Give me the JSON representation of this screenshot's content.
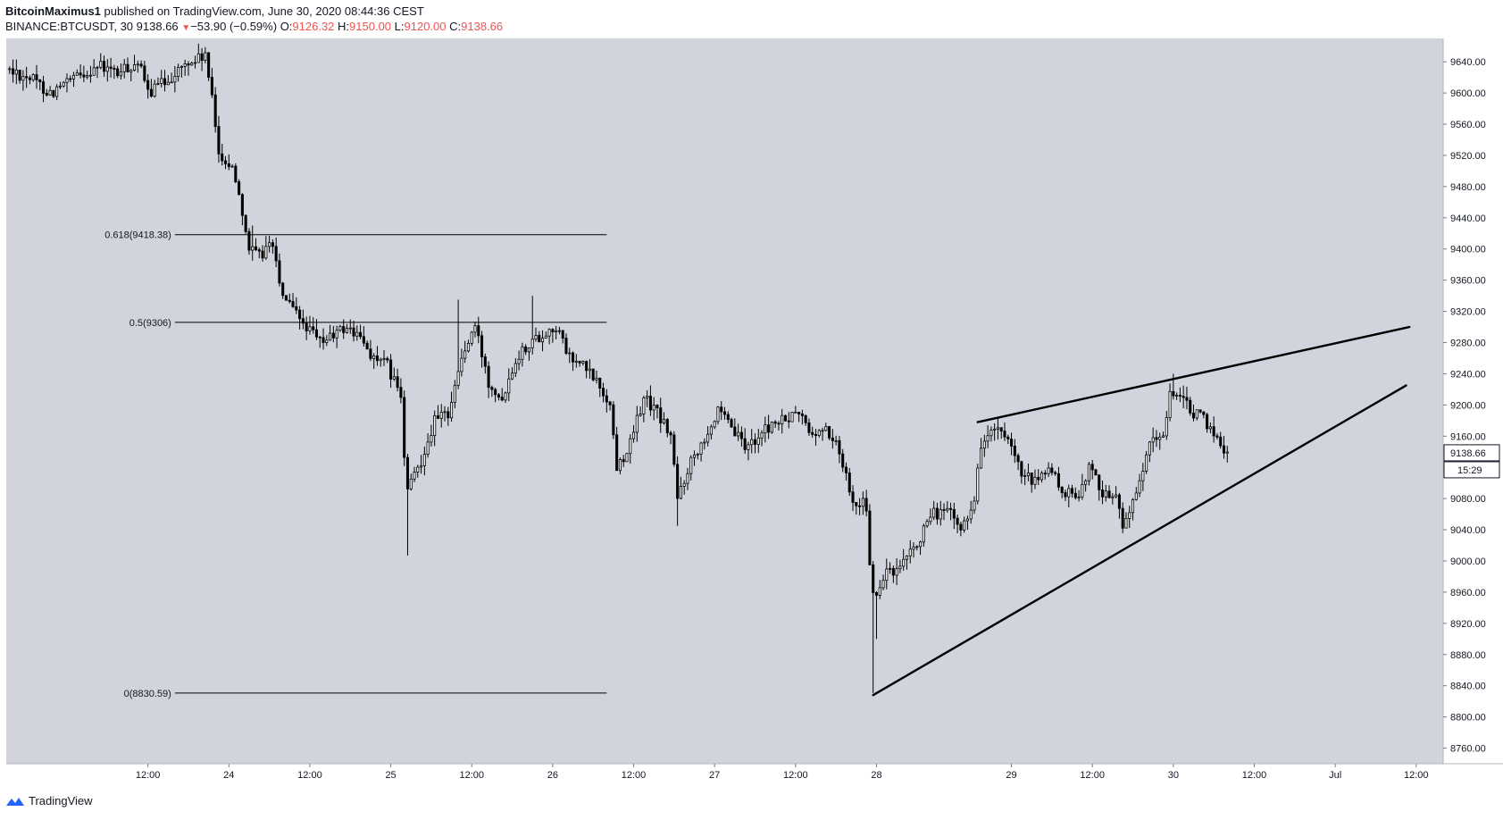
{
  "header": {
    "author": "BitcoinMaximus1",
    "published_text": "published on TradingView.com, June 30, 2020 08:44:36 CEST"
  },
  "symbol_bar": {
    "symbol": "BINANCE:BTCUSDT, 30",
    "last": "9138.66",
    "direction_icon": "down-triangle-icon",
    "change": "−53.90 (−0.59%)",
    "open_label": "O:",
    "open": "9126.32",
    "high_label": "H:",
    "high": "9150.00",
    "low_label": "L:",
    "low": "9120.00",
    "close_label": "C:",
    "close": "9138.66"
  },
  "footer": {
    "brand": "TradingView",
    "logo_icon": "tradingview-logo-icon"
  },
  "colors": {
    "plot_background": "#d1d4dc",
    "candle": "#000000",
    "text": "#131722",
    "down_value": "#ef5350"
  },
  "chart_data": {
    "type": "candlestick",
    "timeframe": "30",
    "y_axis": {
      "range": [
        8740,
        9670
      ],
      "ticks": [
        8760,
        8800,
        8840,
        8880,
        8920,
        8960,
        9000,
        9040,
        9080,
        9120,
        9160,
        9200,
        9240,
        9280,
        9320,
        9360,
        9400,
        9440,
        9480,
        9520,
        9560,
        9600,
        9640
      ],
      "tick_labels": [
        "8760.00",
        "8800.00",
        "8840.00",
        "8880.00",
        "8920.00",
        "8960.00",
        "9000.00",
        "9040.00",
        "9080.00",
        "9120.00",
        "9160.00",
        "9200.00",
        "9240.00",
        "9280.00",
        "9320.00",
        "9360.00",
        "9400.00",
        "9440.00",
        "9480.00",
        "9520.00",
        "9560.00",
        "9600.00",
        "9640.00"
      ]
    },
    "x_axis": {
      "unit": "hours since Jun 23 00:00",
      "range": [
        -9,
        204
      ],
      "ticks": [
        {
          "t": 12,
          "label": "12:00"
        },
        {
          "t": 24,
          "label": "24"
        },
        {
          "t": 36,
          "label": "12:00"
        },
        {
          "t": 48,
          "label": "25"
        },
        {
          "t": 60,
          "label": "12:00"
        },
        {
          "t": 72,
          "label": "26"
        },
        {
          "t": 84,
          "label": "12:00"
        },
        {
          "t": 96,
          "label": "27"
        },
        {
          "t": 108,
          "label": "12:00"
        },
        {
          "t": 120,
          "label": "28"
        },
        {
          "t": 140,
          "label": "29"
        },
        {
          "t": 152,
          "label": "12:00"
        },
        {
          "t": 164,
          "label": "30"
        },
        {
          "t": 176,
          "label": "12:00"
        },
        {
          "t": 188,
          "label": "Jul"
        },
        {
          "t": 200,
          "label": "12:00"
        }
      ]
    },
    "price_label": {
      "value": 9138.66,
      "text": "9138.66"
    },
    "countdown": "15:29",
    "path_keypoints": [
      [
        -8.5,
        9630
      ],
      [
        -5,
        9620
      ],
      [
        -2,
        9600
      ],
      [
        1,
        9615
      ],
      [
        5,
        9635
      ],
      [
        8,
        9625
      ],
      [
        11,
        9640
      ],
      [
        12.5,
        9600
      ],
      [
        15,
        9615
      ],
      [
        18,
        9635
      ],
      [
        21,
        9648
      ],
      [
        22,
        9590
      ],
      [
        23,
        9525
      ],
      [
        24.2,
        9510
      ],
      [
        25.3,
        9500
      ],
      [
        26.5,
        9450
      ],
      [
        27.5,
        9400
      ],
      [
        29,
        9390
      ],
      [
        31,
        9410
      ],
      [
        32,
        9350
      ],
      [
        34,
        9320
      ],
      [
        36,
        9300
      ],
      [
        38,
        9280
      ],
      [
        40,
        9290
      ],
      [
        42,
        9300
      ],
      [
        44,
        9285
      ],
      [
        46,
        9260
      ],
      [
        48,
        9250
      ],
      [
        50,
        9210
      ],
      [
        50.5,
        9130
      ],
      [
        51,
        9090
      ],
      [
        53,
        9130
      ],
      [
        55,
        9180
      ],
      [
        57,
        9190
      ],
      [
        59,
        9260
      ],
      [
        61,
        9300
      ],
      [
        63,
        9230
      ],
      [
        65,
        9210
      ],
      [
        67,
        9260
      ],
      [
        69,
        9280
      ],
      [
        71,
        9290
      ],
      [
        73,
        9300
      ],
      [
        75,
        9260
      ],
      [
        77,
        9250
      ],
      [
        79,
        9230
      ],
      [
        81,
        9200
      ],
      [
        82,
        9120
      ],
      [
        84,
        9150
      ],
      [
        86,
        9210
      ],
      [
        88,
        9190
      ],
      [
        90,
        9160
      ],
      [
        91,
        9080
      ],
      [
        93,
        9130
      ],
      [
        95,
        9160
      ],
      [
        97,
        9190
      ],
      [
        99,
        9170
      ],
      [
        101,
        9145
      ],
      [
        103,
        9160
      ],
      [
        105,
        9175
      ],
      [
        107,
        9180
      ],
      [
        109,
        9190
      ],
      [
        111,
        9160
      ],
      [
        113,
        9170
      ],
      [
        115,
        9140
      ],
      [
        117,
        9080
      ],
      [
        119,
        9070
      ],
      [
        119.6,
        8975
      ],
      [
        120.2,
        8945
      ],
      [
        122,
        8990
      ],
      [
        123,
        8980
      ],
      [
        125,
        9000
      ],
      [
        127,
        9030
      ],
      [
        129,
        9060
      ],
      [
        131,
        9065
      ],
      [
        133,
        9040
      ],
      [
        135,
        9080
      ],
      [
        136,
        9150
      ],
      [
        138,
        9170
      ],
      [
        140,
        9150
      ],
      [
        142,
        9110
      ],
      [
        144,
        9100
      ],
      [
        146,
        9120
      ],
      [
        148,
        9090
      ],
      [
        150,
        9080
      ],
      [
        152,
        9120
      ],
      [
        154,
        9090
      ],
      [
        156,
        9080
      ],
      [
        157,
        9050
      ],
      [
        159,
        9080
      ],
      [
        161,
        9150
      ],
      [
        163,
        9160
      ],
      [
        164,
        9220
      ],
      [
        165,
        9210
      ],
      [
        167,
        9195
      ],
      [
        169,
        9180
      ],
      [
        171,
        9160
      ],
      [
        172,
        9140
      ]
    ],
    "wick_spikes": [
      {
        "t": 50.5,
        "low": 9007
      },
      {
        "t": 119.6,
        "low": 8830.59
      },
      {
        "t": 120.2,
        "low": 8900
      },
      {
        "t": 90.5,
        "low": 9045
      },
      {
        "t": 69,
        "high": 9340
      },
      {
        "t": 58,
        "high": 9335
      },
      {
        "t": 27.5,
        "high": 9430
      },
      {
        "t": 164,
        "high": 9240
      }
    ],
    "fibonacci": {
      "t_range": [
        16,
        80
      ],
      "levels": [
        {
          "ratio": "0.618",
          "price": 9418.38,
          "text": "0.618(9418.38)"
        },
        {
          "ratio": "0.5",
          "price": 9306,
          "text": "0.5(9306)"
        },
        {
          "ratio": "0",
          "price": 8830.59,
          "text": "0(8830.59)"
        }
      ]
    },
    "trendlines": [
      {
        "name": "wedge-resistance",
        "from": [
          135,
          9178
        ],
        "to": [
          199,
          9300
        ]
      },
      {
        "name": "wedge-support",
        "from": [
          119.5,
          8828
        ],
        "to": [
          198.5,
          9225
        ]
      }
    ]
  }
}
